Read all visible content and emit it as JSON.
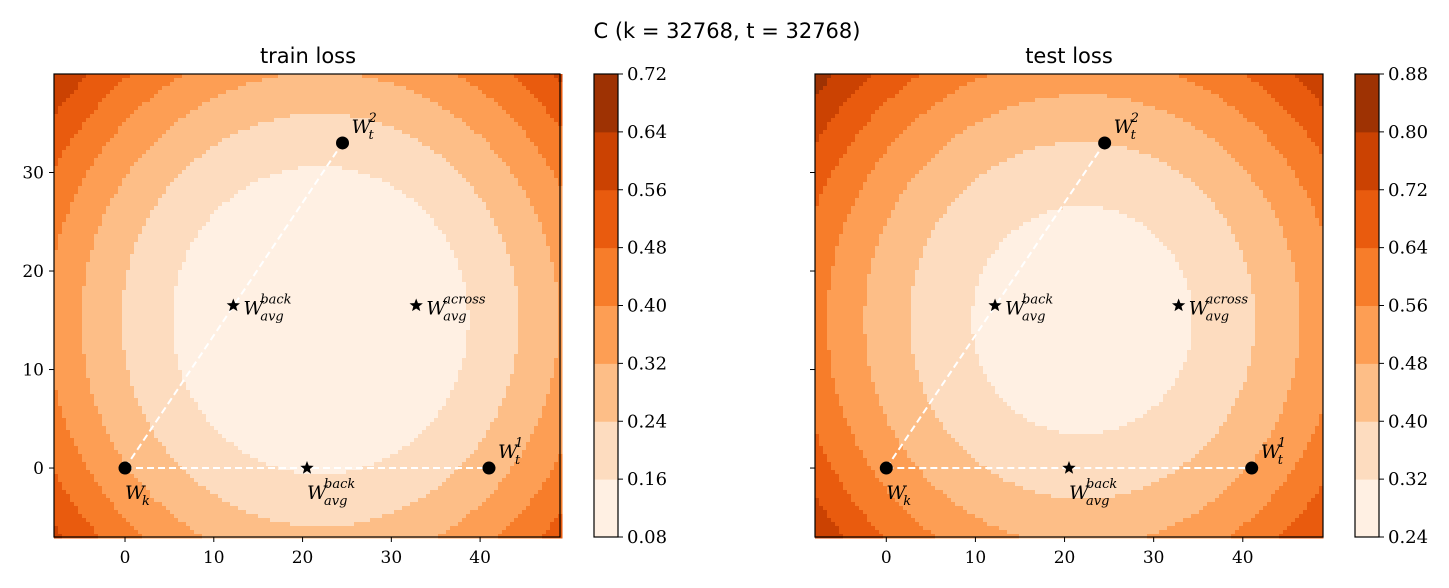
{
  "figure": {
    "suptitle": "C (k = 32768, t = 32768)"
  },
  "colors": {
    "levels": [
      "#fff0e3",
      "#fddcbf",
      "#fdbe87",
      "#fd9e54",
      "#f77d2a",
      "#e95b0e",
      "#cb4202",
      "#9e3203",
      "#7f2704"
    ]
  },
  "chart_data": [
    {
      "type": "contour",
      "title": "train loss",
      "xlim": [
        -8,
        49
      ],
      "ylim": [
        -7,
        40
      ],
      "xticks": [
        "0",
        "10",
        "20",
        "30",
        "40"
      ],
      "yticks": [
        "0",
        "10",
        "20",
        "30"
      ],
      "colorbar": {
        "ticks": [
          "0.08",
          "0.16",
          "0.24",
          "0.32",
          "0.40",
          "0.48",
          "0.56",
          "0.64",
          "0.72"
        ],
        "range": [
          0.08,
          0.72
        ]
      },
      "surface": {
        "center": [
          22,
          15
        ],
        "base": 0.06,
        "a": 0.00036,
        "b": 0.00041
      },
      "points": [
        {
          "id": "wk",
          "type": "circle",
          "x": 0,
          "y": 0,
          "label": "W",
          "sub": "k",
          "sup": "",
          "label_pos": "below"
        },
        {
          "id": "wt1",
          "type": "circle",
          "x": 41,
          "y": 0,
          "label": "W",
          "sub": "t",
          "sup": "1",
          "label_pos": "upper-right"
        },
        {
          "id": "wt2",
          "type": "circle",
          "x": 24.5,
          "y": 33,
          "label": "W",
          "sub": "t",
          "sup": "2",
          "label_pos": "upper-right"
        },
        {
          "id": "wavg-back-1",
          "type": "star",
          "x": 20.5,
          "y": 0,
          "label": "W",
          "sub": "avg",
          "sup": "back",
          "label_pos": "below"
        },
        {
          "id": "wavg-back-2",
          "type": "star",
          "x": 12.2,
          "y": 16.5,
          "label": "W",
          "sub": "avg",
          "sup": "back",
          "label_pos": "right"
        },
        {
          "id": "wavg-across",
          "type": "star",
          "x": 32.8,
          "y": 16.5,
          "label": "W",
          "sub": "avg",
          "sup": "across",
          "label_pos": "right"
        }
      ],
      "lines": [
        {
          "from": [
            0,
            0
          ],
          "to": [
            41,
            0
          ]
        },
        {
          "from": [
            0,
            0
          ],
          "to": [
            24.5,
            33
          ]
        }
      ]
    },
    {
      "type": "contour",
      "title": "test loss",
      "xlim": [
        -8,
        49
      ],
      "ylim": [
        -7,
        40
      ],
      "xticks": [
        "0",
        "10",
        "20",
        "30",
        "40"
      ],
      "yticks": [
        "0",
        "10",
        "20",
        "30"
      ],
      "colorbar": {
        "ticks": [
          "0.24",
          "0.32",
          "0.40",
          "0.48",
          "0.56",
          "0.64",
          "0.72",
          "0.80",
          "0.88"
        ],
        "range": [
          0.24,
          0.88
        ]
      },
      "surface": {
        "center": [
          22,
          15
        ],
        "base": 0.265,
        "a": 0.00036,
        "b": 0.00041
      },
      "points": [
        {
          "id": "wk",
          "type": "circle",
          "x": 0,
          "y": 0,
          "label": "W",
          "sub": "k",
          "sup": "",
          "label_pos": "below"
        },
        {
          "id": "wt1",
          "type": "circle",
          "x": 41,
          "y": 0,
          "label": "W",
          "sub": "t",
          "sup": "1",
          "label_pos": "upper-right"
        },
        {
          "id": "wt2",
          "type": "circle",
          "x": 24.5,
          "y": 33,
          "label": "W",
          "sub": "t",
          "sup": "2",
          "label_pos": "upper-right"
        },
        {
          "id": "wavg-back-1",
          "type": "star",
          "x": 20.5,
          "y": 0,
          "label": "W",
          "sub": "avg",
          "sup": "back",
          "label_pos": "below"
        },
        {
          "id": "wavg-back-2",
          "type": "star",
          "x": 12.2,
          "y": 16.5,
          "label": "W",
          "sub": "avg",
          "sup": "back",
          "label_pos": "right"
        },
        {
          "id": "wavg-across",
          "type": "star",
          "x": 32.8,
          "y": 16.5,
          "label": "W",
          "sub": "avg",
          "sup": "across",
          "label_pos": "right"
        }
      ],
      "lines": [
        {
          "from": [
            0,
            0
          ],
          "to": [
            41,
            0
          ]
        },
        {
          "from": [
            0,
            0
          ],
          "to": [
            24.5,
            33
          ]
        }
      ]
    }
  ]
}
